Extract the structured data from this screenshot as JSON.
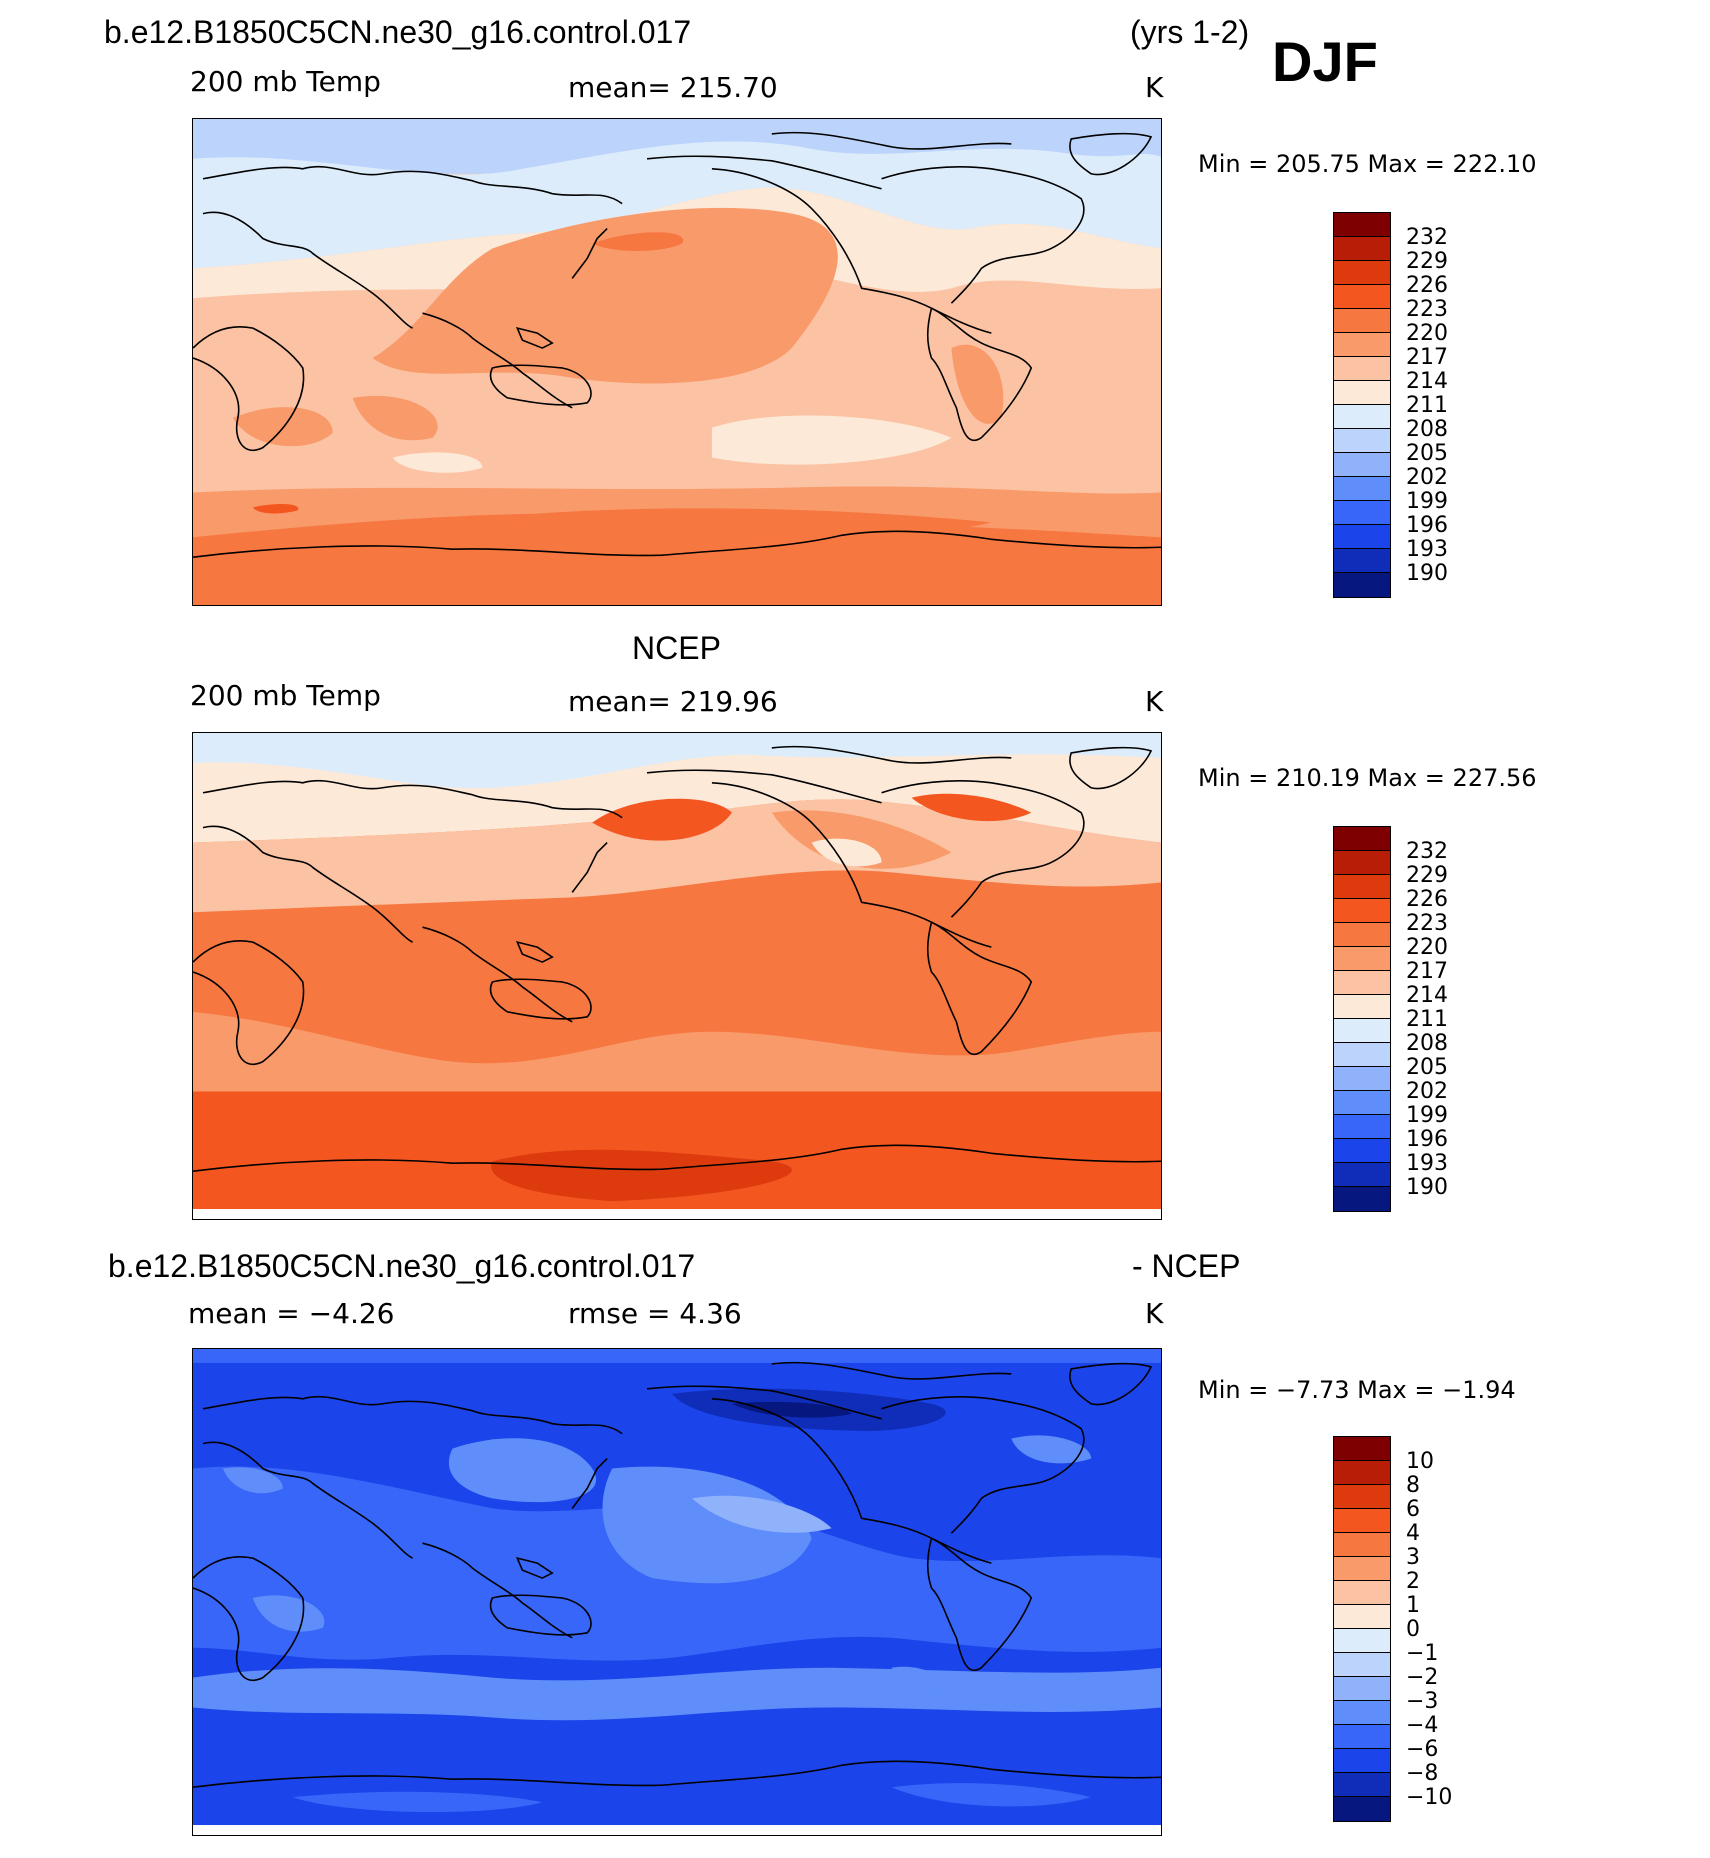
{
  "header": {
    "case_title": "b.e12.B1850C5CN.ne30_g16.control.017",
    "years": "(yrs 1-2)",
    "season": "DJF"
  },
  "panels": [
    {
      "left_label": "200 mb Temp",
      "mean_label": "mean=  215.70",
      "units": "K",
      "minmax": "Min  =  205.75  Max  =  222.10",
      "theme": "model"
    },
    {
      "title": "NCEP",
      "left_label": "200 mb Temp",
      "mean_label": "mean=  219.96",
      "units": "K",
      "minmax": "Min  =  210.19  Max  =  227.56",
      "theme": "obs"
    },
    {
      "title_left": "b.e12.B1850C5CN.ne30_g16.control.017",
      "title_right": "- NCEP",
      "left_label": "mean  =    −4.26",
      "mean_label": "rmse  =     4.36",
      "units": "K",
      "minmax": "Min  =    −7.73  Max  =   −1.94",
      "theme": "diff"
    }
  ],
  "colorbars": {
    "absolute": {
      "labels": [
        "232",
        "229",
        "226",
        "223",
        "220",
        "217",
        "214",
        "211",
        "208",
        "205",
        "202",
        "199",
        "196",
        "193",
        "190"
      ],
      "colors": [
        "#7f0000",
        "#b81d07",
        "#dd3a0e",
        "#f45620",
        "#f77740",
        "#f99a6a",
        "#fbc3a4",
        "#fde9d8",
        "#dcecfb",
        "#bcd3fb",
        "#8fb2fb",
        "#5f8efb",
        "#3866f8",
        "#1b44ea",
        "#0f2db8",
        "#061780"
      ]
    },
    "difference": {
      "labels": [
        "10",
        "8",
        "6",
        "4",
        "3",
        "2",
        "1",
        "0",
        "−1",
        "−2",
        "−3",
        "−4",
        "−6",
        "−8",
        "−10"
      ],
      "colors": [
        "#7f0000",
        "#b81d07",
        "#dd3a0e",
        "#f45620",
        "#f77740",
        "#f99a6a",
        "#fbc3a4",
        "#fde9d8",
        "#dcecfb",
        "#bcd3fb",
        "#8fb2fb",
        "#5f8efb",
        "#3866f8",
        "#1b44ea",
        "#0f2db8",
        "#061780"
      ]
    }
  }
}
